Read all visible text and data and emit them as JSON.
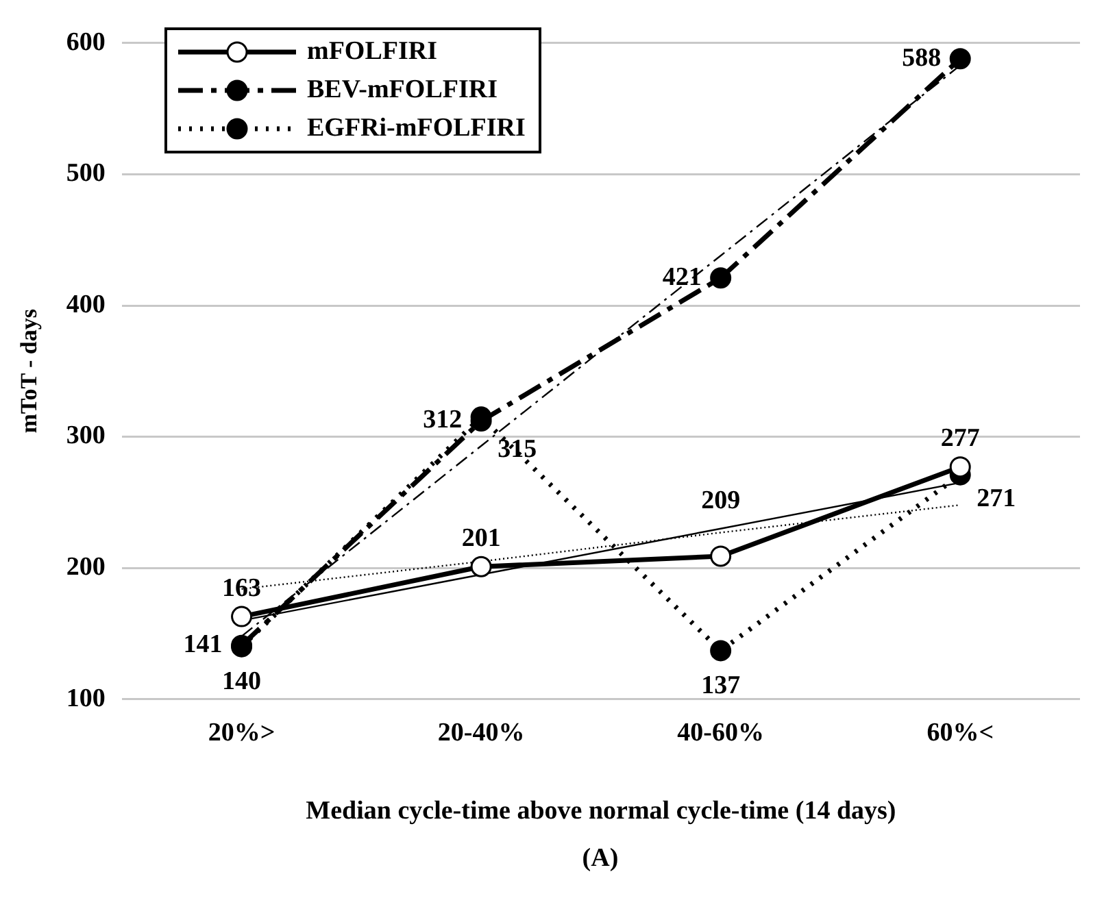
{
  "chart_data": {
    "type": "line",
    "categories": [
      "20%>",
      "20-40%",
      "40-60%",
      "60%<"
    ],
    "xlabel": "Median cycle-time above normal cycle-time (14 days)",
    "ylabel": "mToT - days",
    "ylim": [
      100,
      600
    ],
    "yticks": [
      100,
      200,
      300,
      400,
      500,
      600
    ],
    "grid": "y",
    "legend": "top left",
    "marker": "circle",
    "annotations": [
      "(A)"
    ],
    "series": [
      {
        "name": "mFOLFIRI",
        "color": "#000000",
        "line_style": "solid",
        "values": [
          163,
          201,
          209,
          277
        ],
        "value_labels": [
          "163",
          "201",
          "209",
          "277"
        ]
      },
      {
        "name": "BEV-mFOLFIRI",
        "color": "#000000",
        "line_style": "dashed",
        "values": [
          141,
          312,
          421,
          588
        ],
        "value_labels": [
          "141",
          "312",
          "421",
          "588"
        ]
      },
      {
        "name": "EGFRi-mFOLFIRI",
        "color": "#000000",
        "line_style": "dotted",
        "values": [
          140,
          315,
          137,
          271
        ],
        "value_labels": [
          "140",
          "315",
          "137",
          "271"
        ]
      },
      {
        "type": "line",
        "color": "#000000",
        "line_style": "solid",
        "marker": "none",
        "x": [
          "20%>",
          "20-40%",
          "40-60%",
          "60%<"
        ],
        "values": [
          160,
          195,
          230,
          265
        ]
      },
      {
        "type": "line",
        "color": "#000000",
        "line_style": "dashed",
        "marker": "none",
        "x": [
          "20%>",
          "20-40%",
          "40-60%",
          "60%<"
        ],
        "values": [
          148,
          293,
          438,
          583
        ]
      },
      {
        "type": "line",
        "color": "#000000",
        "line_style": "dotted",
        "marker": "none",
        "x": [
          "20%>",
          "20-40%",
          "40-60%",
          "60%<"
        ],
        "values": [
          184,
          205,
          227,
          248
        ]
      }
    ]
  }
}
